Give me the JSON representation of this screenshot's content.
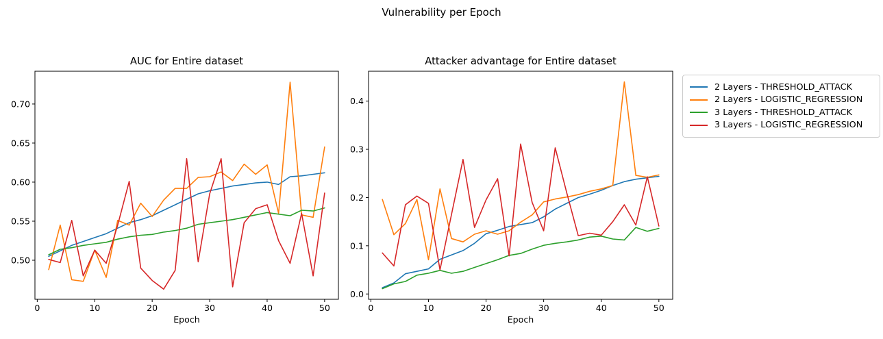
{
  "figure": {
    "suptitle": "Vulnerability per Epoch"
  },
  "colors": {
    "blue": "#1f77b4",
    "orange": "#ff7f0e",
    "green": "#2ca02c",
    "red": "#d62728"
  },
  "legend": {
    "items": [
      {
        "label": "2 Layers - THRESHOLD_ATTACK",
        "color": "#1f77b4"
      },
      {
        "label": "2 Layers - LOGISTIC_REGRESSION",
        "color": "#ff7f0e"
      },
      {
        "label": "3 Layers - THRESHOLD_ATTACK",
        "color": "#2ca02c"
      },
      {
        "label": "3 Layers - LOGISTIC_REGRESSION",
        "color": "#d62728"
      }
    ]
  },
  "chart_data": [
    {
      "type": "line",
      "title": "AUC for Entire dataset",
      "xlabel": "Epoch",
      "ylabel": "",
      "legend_position": "outside-right",
      "grid": false,
      "xlim": [
        -0.4,
        52.4
      ],
      "ylim": [
        0.45,
        0.742
      ],
      "x": [
        2,
        4,
        6,
        8,
        10,
        12,
        14,
        16,
        18,
        20,
        22,
        24,
        26,
        28,
        30,
        32,
        34,
        36,
        38,
        40,
        42,
        44,
        46,
        48,
        50
      ],
      "xticks": [
        {
          "v": 0,
          "label": "0"
        },
        {
          "v": 10,
          "label": "10"
        },
        {
          "v": 20,
          "label": "20"
        },
        {
          "v": 30,
          "label": "30"
        },
        {
          "v": 40,
          "label": "40"
        },
        {
          "v": 50,
          "label": "50"
        }
      ],
      "yticks": [
        {
          "v": 0.5,
          "label": "0.50"
        },
        {
          "v": 0.55,
          "label": "0.55"
        },
        {
          "v": 0.6,
          "label": "0.60"
        },
        {
          "v": 0.65,
          "label": "0.65"
        },
        {
          "v": 0.7,
          "label": "0.70"
        }
      ],
      "series": [
        {
          "name": "2 Layers - THRESHOLD_ATTACK",
          "color": "#1f77b4",
          "values": [
            0.505,
            0.512,
            0.519,
            0.524,
            0.529,
            0.534,
            0.541,
            0.548,
            0.552,
            0.557,
            0.564,
            0.571,
            0.578,
            0.585,
            0.589,
            0.592,
            0.595,
            0.597,
            0.599,
            0.6,
            0.597,
            0.607,
            0.608,
            0.61,
            0.612
          ]
        },
        {
          "name": "2 Layers - LOGISTIC_REGRESSION",
          "color": "#ff7f0e",
          "values": [
            0.488,
            0.545,
            0.475,
            0.473,
            0.513,
            0.478,
            0.551,
            0.545,
            0.573,
            0.556,
            0.577,
            0.592,
            0.592,
            0.606,
            0.607,
            0.613,
            0.602,
            0.623,
            0.61,
            0.622,
            0.56,
            0.728,
            0.558,
            0.555,
            0.645
          ]
        },
        {
          "name": "3 Layers - THRESHOLD_ATTACK",
          "color": "#2ca02c",
          "values": [
            0.507,
            0.514,
            0.516,
            0.519,
            0.521,
            0.523,
            0.527,
            0.53,
            0.532,
            0.533,
            0.536,
            0.538,
            0.541,
            0.546,
            0.548,
            0.55,
            0.552,
            0.555,
            0.558,
            0.561,
            0.559,
            0.557,
            0.564,
            0.563,
            0.567
          ]
        },
        {
          "name": "3 Layers - LOGISTIC_REGRESSION",
          "color": "#d62728",
          "values": [
            0.501,
            0.497,
            0.551,
            0.48,
            0.513,
            0.496,
            0.545,
            0.601,
            0.49,
            0.474,
            0.463,
            0.487,
            0.63,
            0.498,
            0.585,
            0.63,
            0.466,
            0.548,
            0.566,
            0.571,
            0.525,
            0.496,
            0.56,
            0.48,
            0.586
          ]
        }
      ]
    },
    {
      "type": "line",
      "title": "Attacker advantage for Entire dataset",
      "xlabel": "Epoch",
      "ylabel": "",
      "legend_position": "outside-right",
      "grid": false,
      "xlim": [
        -0.4,
        52.4
      ],
      "ylim": [
        -0.011,
        0.462
      ],
      "x": [
        2,
        4,
        6,
        8,
        10,
        12,
        14,
        16,
        18,
        20,
        22,
        24,
        26,
        28,
        30,
        32,
        34,
        36,
        38,
        40,
        42,
        44,
        46,
        48,
        50
      ],
      "xticks": [
        {
          "v": 0,
          "label": "0"
        },
        {
          "v": 10,
          "label": "10"
        },
        {
          "v": 20,
          "label": "20"
        },
        {
          "v": 30,
          "label": "30"
        },
        {
          "v": 40,
          "label": "40"
        },
        {
          "v": 50,
          "label": "50"
        }
      ],
      "yticks": [
        {
          "v": 0.0,
          "label": "0.0"
        },
        {
          "v": 0.1,
          "label": "0.1"
        },
        {
          "v": 0.2,
          "label": "0.2"
        },
        {
          "v": 0.3,
          "label": "0.3"
        },
        {
          "v": 0.4,
          "label": "0.4"
        }
      ],
      "series": [
        {
          "name": "2 Layers - THRESHOLD_ATTACK",
          "color": "#1f77b4",
          "values": [
            0.013,
            0.023,
            0.042,
            0.047,
            0.052,
            0.072,
            0.081,
            0.09,
            0.105,
            0.125,
            0.132,
            0.14,
            0.144,
            0.148,
            0.16,
            0.176,
            0.188,
            0.2,
            0.207,
            0.215,
            0.225,
            0.233,
            0.238,
            0.241,
            0.244
          ]
        },
        {
          "name": "2 Layers - LOGISTIC_REGRESSION",
          "color": "#ff7f0e",
          "values": [
            0.196,
            0.123,
            0.146,
            0.196,
            0.071,
            0.218,
            0.115,
            0.108,
            0.124,
            0.131,
            0.124,
            0.131,
            0.149,
            0.164,
            0.191,
            0.197,
            0.201,
            0.206,
            0.213,
            0.218,
            0.225,
            0.44,
            0.246,
            0.242,
            0.247
          ]
        },
        {
          "name": "3 Layers - THRESHOLD_ATTACK",
          "color": "#2ca02c",
          "values": [
            0.011,
            0.021,
            0.026,
            0.039,
            0.043,
            0.049,
            0.043,
            0.047,
            0.055,
            0.063,
            0.071,
            0.08,
            0.084,
            0.093,
            0.101,
            0.105,
            0.108,
            0.112,
            0.118,
            0.12,
            0.114,
            0.112,
            0.138,
            0.13,
            0.136
          ]
        },
        {
          "name": "3 Layers - LOGISTIC_REGRESSION",
          "color": "#d62728",
          "values": [
            0.085,
            0.058,
            0.185,
            0.203,
            0.188,
            0.05,
            0.165,
            0.279,
            0.138,
            0.195,
            0.239,
            0.079,
            0.311,
            0.19,
            0.131,
            0.303,
            0.21,
            0.121,
            0.126,
            0.122,
            0.15,
            0.185,
            0.143,
            0.243,
            0.141
          ]
        }
      ]
    }
  ]
}
